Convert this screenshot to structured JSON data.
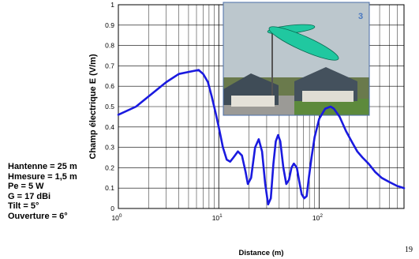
{
  "chart_data": {
    "type": "line",
    "title": "",
    "xlabel": "Distance (m)",
    "ylabel": "Champ électrique E (V/m)",
    "xscale": "log",
    "xlim": [
      1,
      700
    ],
    "ylim": [
      0,
      1
    ],
    "yticks": [
      "0",
      "0.1",
      "0.2",
      "0.3",
      "0.4",
      "0.5",
      "0.6",
      "0.7",
      "0.8",
      "0.9",
      "1"
    ],
    "xtick_labels": [
      {
        "base": "10",
        "exp": "0",
        "value": 1
      },
      {
        "base": "10",
        "exp": "1",
        "value": 10
      },
      {
        "base": "10",
        "exp": "2",
        "value": 100
      }
    ],
    "grid": true,
    "legend": "none",
    "line_color": "#1a1adf",
    "series": [
      {
        "x": [
          1,
          1.5,
          2,
          3,
          4,
          5,
          6.3,
          7,
          7.8,
          8.5,
          9.3,
          10,
          11,
          12,
          13,
          14,
          15.5,
          17,
          18.5,
          19.5,
          21,
          23,
          25,
          27,
          29,
          31,
          33,
          35,
          37,
          39,
          41,
          44,
          47,
          50,
          53,
          56,
          60,
          63,
          67,
          71,
          75,
          79,
          84,
          90,
          100,
          115,
          130,
          140,
          160,
          185,
          210,
          240,
          270,
          310,
          360,
          420,
          500,
          600,
          700
        ],
        "y": [
          0.46,
          0.5,
          0.55,
          0.62,
          0.66,
          0.67,
          0.68,
          0.66,
          0.62,
          0.55,
          0.47,
          0.4,
          0.3,
          0.24,
          0.23,
          0.25,
          0.28,
          0.26,
          0.18,
          0.12,
          0.15,
          0.3,
          0.34,
          0.28,
          0.12,
          0.02,
          0.05,
          0.22,
          0.33,
          0.36,
          0.33,
          0.2,
          0.12,
          0.14,
          0.2,
          0.22,
          0.2,
          0.14,
          0.07,
          0.05,
          0.06,
          0.15,
          0.25,
          0.35,
          0.44,
          0.49,
          0.5,
          0.49,
          0.45,
          0.38,
          0.33,
          0.28,
          0.25,
          0.22,
          0.18,
          0.15,
          0.13,
          0.11,
          0.1
        ]
      }
    ]
  },
  "params": [
    "Hantenne = 25 m",
    "Hmesure = 1,5 m",
    "Pe = 5 W",
    "G = 17 dBi",
    "Tilt = 5°",
    "Ouverture = 6°"
  ],
  "inset": {
    "badge": "3",
    "sky_color": "#bcc7cd",
    "lobe_color": "#20c8a0"
  },
  "page_number": "19"
}
